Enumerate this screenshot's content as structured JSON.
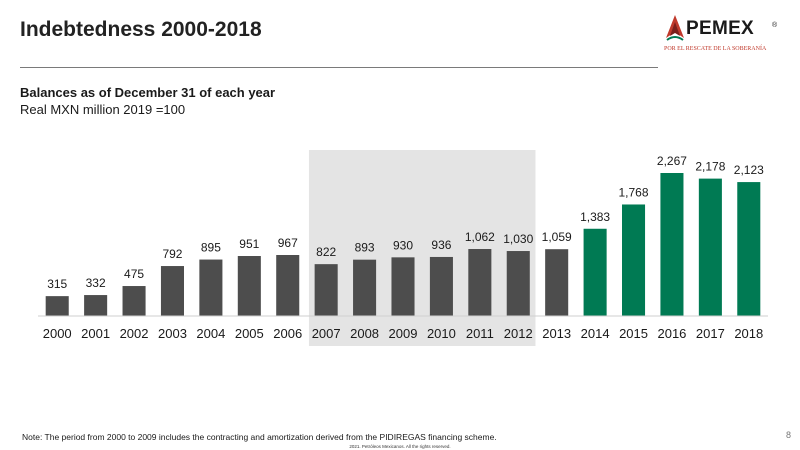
{
  "slide": {
    "title": "Indebtedness 2000-2018",
    "subtitle": "Balances as of December 31 of each year",
    "unit_note": "Real MXN million 2019 =100",
    "note": "Note: The period from 2000 to 2009 includes the contracting and amortization derived from the PIDIREGAS financing scheme.",
    "page_number": "8",
    "copyright": "2021. Petróleos Mexicanos. All the rights reserved."
  },
  "logo": {
    "wordmark": "PEMEX",
    "registered": "®",
    "slogan": "POR EL RESCATE DE LA SOBERANÍA"
  },
  "colors": {
    "bar_default": "#4d4d4d",
    "bar_highlight": "#007a53",
    "shaded_region": "#e4e4e4"
  },
  "chart_data": {
    "type": "bar",
    "categories": [
      "2000",
      "2001",
      "2002",
      "2003",
      "2004",
      "2005",
      "2006",
      "2007",
      "2008",
      "2009",
      "2010",
      "2011",
      "2012",
      "2013",
      "2014",
      "2015",
      "2016",
      "2017",
      "2018"
    ],
    "values": [
      315,
      332,
      475,
      792,
      895,
      951,
      967,
      822,
      893,
      930,
      936,
      1062,
      1030,
      1059,
      1383,
      1768,
      2267,
      2178,
      2123
    ],
    "value_labels": [
      "315",
      "332",
      "475",
      "792",
      "895",
      "951",
      "967",
      "822",
      "893",
      "930",
      "936",
      "1,062",
      "1,030",
      "1,059",
      "1,383",
      "1,768",
      "2,267",
      "2,178",
      "2,123"
    ],
    "highlighted_categories": [
      "2014",
      "2015",
      "2016",
      "2017",
      "2018"
    ],
    "shaded_range": [
      "2007",
      "2012"
    ],
    "ylim": [
      0,
      2400
    ],
    "grid": false,
    "legend": "none"
  }
}
